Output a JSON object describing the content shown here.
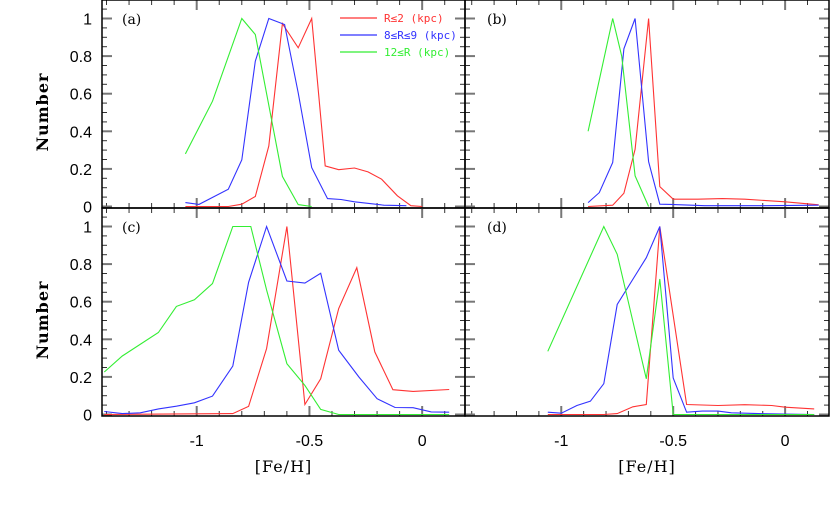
{
  "chart_data": {
    "type": "line",
    "xlabel": "[Fe/H]",
    "ylabel": "Number",
    "grid": false,
    "legend_placement": "top-right of panel (a)",
    "legend": [
      {
        "label": "R≤2 (kpc)",
        "color": "#ff3333"
      },
      {
        "label": "8≤R≤9 (kpc)",
        "color": "#3333ff"
      },
      {
        "label": "12≤R (kpc)",
        "color": "#33ee33"
      }
    ],
    "x_tick_labels": [
      "-1",
      "-0.5",
      "0"
    ],
    "x_tick_values": [
      -1,
      -0.5,
      0
    ],
    "y_tick_labels": [
      "0",
      "0.2",
      "0.4",
      "0.6",
      "0.8",
      "1"
    ],
    "y_tick_values": [
      0,
      0.2,
      0.4,
      0.6,
      0.8,
      1
    ],
    "panels": [
      {
        "label": "(a)",
        "xlim": [
          -1.42,
          0.19
        ],
        "ylim": [
          0,
          1.1
        ],
        "series": [
          {
            "color": "#ff3333",
            "x": [
              -1.05,
              -0.86,
              -0.8,
              -0.74,
              -0.68,
              -0.62,
              -0.55,
              -0.49,
              -0.43,
              -0.37,
              -0.3,
              -0.24,
              -0.18,
              -0.11,
              -0.05,
              0.0
            ],
            "y": [
              0,
              0,
              0.012,
              0.053,
              0.322,
              0.973,
              0.844,
              1.0,
              0.216,
              0.196,
              0.205,
              0.184,
              0.145,
              0.057,
              0.004,
              0
            ]
          },
          {
            "color": "#3333ff",
            "x": [
              -1.05,
              -0.99,
              -0.86,
              -0.8,
              -0.74,
              -0.68,
              -0.61,
              -0.55,
              -0.49,
              -0.42,
              -0.36,
              -0.3,
              -0.17,
              -0.07
            ],
            "y": [
              0.021,
              0.011,
              0.092,
              0.248,
              0.773,
              1.0,
              0.968,
              0.605,
              0.207,
              0.042,
              0.037,
              0.025,
              0.007,
              0.004
            ]
          },
          {
            "color": "#33ee33",
            "x": [
              -1.05,
              -0.93,
              -0.8,
              -0.74,
              -0.62,
              -0.55,
              -0.49
            ],
            "y": [
              0.28,
              0.56,
              1.0,
              0.915,
              0.16,
              0.01,
              0
            ]
          }
        ]
      },
      {
        "label": "(b)",
        "xlim": [
          -1.43,
          0.196
        ],
        "ylim": [
          0,
          1.1
        ],
        "series": [
          {
            "color": "#ff3333",
            "x": [
              -0.88,
              -0.77,
              -0.72,
              -0.67,
              -0.61,
              -0.56,
              -0.5,
              -0.39,
              -0.28,
              -0.18,
              0,
              0.15
            ],
            "y": [
              0,
              0.007,
              0.071,
              0.304,
              1.0,
              0.106,
              0.039,
              0.039,
              0.042,
              0.039,
              0.025,
              0.009
            ]
          },
          {
            "color": "#3333ff",
            "x": [
              -0.88,
              -0.83,
              -0.77,
              -0.72,
              -0.67,
              -0.61,
              -0.56,
              -0.51,
              -0.36,
              -0.09,
              0.15
            ],
            "y": [
              0.021,
              0.074,
              0.234,
              0.839,
              1.0,
              0.239,
              0.012,
              0.011,
              0.004,
              0.004,
              0.007
            ]
          },
          {
            "color": "#33ee33",
            "x": [
              -0.88,
              -0.77,
              -0.73,
              -0.67,
              -0.61
            ],
            "y": [
              0.4,
              1.0,
              0.8,
              0.163,
              0
            ]
          }
        ]
      },
      {
        "label": "(c)",
        "xlim": [
          -1.42,
          0.19
        ],
        "ylim": [
          0,
          1.1
        ],
        "series": [
          {
            "color": "#ff3333",
            "x": [
              -1.41,
              -0.84,
              -0.77,
              -0.69,
              -0.6,
              -0.52,
              -0.45,
              -0.37,
              -0.29,
              -0.21,
              -0.13,
              -0.04,
              0.12
            ],
            "y": [
              0,
              0.005,
              0.043,
              0.351,
              1.0,
              0.053,
              0.19,
              0.564,
              0.781,
              0.333,
              0.132,
              0.123,
              0.133
            ]
          },
          {
            "color": "#3333ff",
            "x": [
              -1.41,
              -1.33,
              -1.25,
              -1.17,
              -1.09,
              -1.01,
              -0.93,
              -0.84,
              -0.77,
              -0.69,
              -0.6,
              -0.52,
              -0.45,
              -0.37,
              -0.28,
              -0.2,
              -0.12,
              -0.04,
              0.04,
              0.12
            ],
            "y": [
              0.016,
              0.005,
              0.009,
              0.03,
              0.044,
              0.062,
              0.098,
              0.258,
              0.703,
              1.0,
              0.71,
              0.699,
              0.751,
              0.342,
              0.199,
              0.084,
              0.037,
              0.036,
              0.014,
              0.012
            ]
          },
          {
            "color": "#33ee33",
            "x": [
              -1.41,
              -1.33,
              -1.17,
              -1.09,
              -1.01,
              -0.93,
              -0.84,
              -0.76,
              -0.69,
              -0.6,
              -0.52,
              -0.45,
              -0.37,
              0.12
            ],
            "y": [
              0.226,
              0.311,
              0.436,
              0.575,
              0.61,
              0.697,
              1.0,
              1.0,
              0.662,
              0.27,
              0.155,
              0.027,
              0,
              0
            ]
          }
        ]
      },
      {
        "label": "(d)",
        "xlim": [
          -1.43,
          0.196
        ],
        "ylim": [
          0,
          1.1
        ],
        "series": [
          {
            "color": "#ff3333",
            "x": [
              -1.06,
              -0.81,
              -0.75,
              -0.68,
              -0.62,
              -0.56,
              -0.44,
              -0.3,
              -0.18,
              -0.06,
              0,
              0.13
            ],
            "y": [
              0,
              0,
              0.005,
              0.041,
              0.053,
              1.0,
              0.053,
              0.048,
              0.052,
              0.048,
              0.039,
              0.03
            ]
          },
          {
            "color": "#3333ff",
            "x": [
              -1.06,
              -1.0,
              -0.93,
              -0.87,
              -0.81,
              -0.75,
              -0.62,
              -0.56,
              -0.5,
              -0.44,
              -0.37,
              -0.3,
              -0.24,
              -0.12,
              0.13
            ],
            "y": [
              0.012,
              0.007,
              0.048,
              0.071,
              0.164,
              0.585,
              0.834,
              1.0,
              0.194,
              0.012,
              0.018,
              0.018,
              0.009,
              0.005,
              0
            ]
          },
          {
            "color": "#33ee33",
            "x": [
              -1.06,
              -0.81,
              -0.75,
              -0.62,
              -0.56,
              -0.5,
              0.13
            ],
            "y": [
              0.336,
              1.0,
              0.852,
              0.19,
              0.721,
              0,
              0
            ]
          }
        ]
      }
    ]
  }
}
